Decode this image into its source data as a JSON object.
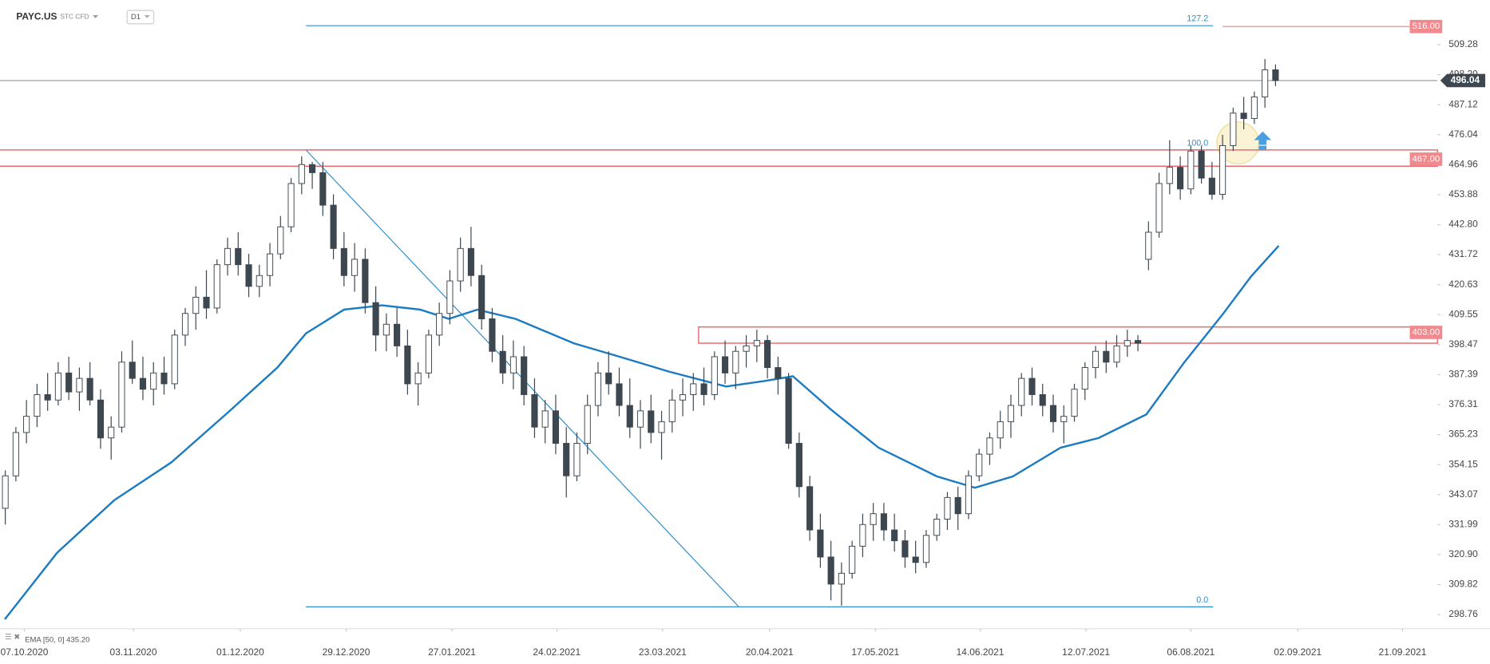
{
  "chart_data": {
    "type": "candlestick",
    "symbol": "PAYC.US",
    "subtitle": "STC CFD",
    "timeframe": "D1",
    "xlim": [
      -0.5,
      135.3
    ],
    "ylim": [
      293.5,
      525.8
    ],
    "xticks": [
      {
        "value": 1.8,
        "label": "07.10.2020"
      },
      {
        "value": 12.1,
        "label": "03.11.2020"
      },
      {
        "value": 22.2,
        "label": "01.12.2020"
      },
      {
        "value": 32.2,
        "label": "29.12.2020"
      },
      {
        "value": 42.2,
        "label": "27.01.2021"
      },
      {
        "value": 52.1,
        "label": "24.02.2021"
      },
      {
        "value": 62.1,
        "label": "23.03.2021"
      },
      {
        "value": 72.2,
        "label": "20.04.2021"
      },
      {
        "value": 82.2,
        "label": "17.05.2021"
      },
      {
        "value": 92.1,
        "label": "14.06.2021"
      },
      {
        "value": 102.1,
        "label": "12.07.2021"
      },
      {
        "value": 112,
        "label": "06.08.2021"
      },
      {
        "value": 122.1,
        "label": "02.09.2021"
      },
      {
        "value": 132,
        "label": "21.09.2021"
      }
    ],
    "yticks": [
      509.28,
      {
        "value": 498.2,
        "label": "498.20"
      },
      487.12,
      476.04,
      464.96,
      453.88,
      {
        "value": 442.8,
        "label": "442.80"
      },
      431.72,
      420.63,
      409.55,
      398.47,
      387.39,
      376.31,
      365.23,
      354.15,
      343.07,
      331.99,
      {
        "value": 320.9,
        "label": "320.90"
      },
      309.82,
      298.76
    ],
    "up_color": "#ffffff",
    "down_color": "#3d4750",
    "candles": [
      [
        338,
        352,
        332,
        350
      ],
      [
        350,
        368,
        348,
        366
      ],
      [
        366,
        378,
        362,
        372
      ],
      [
        372,
        384,
        368,
        380
      ],
      [
        380,
        388,
        374,
        378
      ],
      [
        378,
        392,
        376,
        388
      ],
      [
        388,
        394,
        378,
        381
      ],
      [
        381,
        390,
        374,
        386
      ],
      [
        386,
        392,
        376,
        378
      ],
      [
        378,
        382,
        360,
        364
      ],
      [
        364,
        372,
        356,
        368
      ],
      [
        368,
        396,
        366,
        392
      ],
      [
        392,
        400,
        384,
        386
      ],
      [
        386,
        394,
        378,
        382
      ],
      [
        382,
        392,
        376,
        388
      ],
      [
        388,
        394,
        380,
        384
      ],
      [
        384,
        404,
        382,
        402
      ],
      [
        402,
        412,
        398,
        410
      ],
      [
        410,
        420,
        404,
        416
      ],
      [
        416,
        426,
        408,
        412
      ],
      [
        412,
        430,
        410,
        428
      ],
      [
        428,
        438,
        424,
        434
      ],
      [
        434,
        440,
        424,
        428
      ],
      [
        428,
        432,
        416,
        420
      ],
      [
        420,
        428,
        416,
        424
      ],
      [
        424,
        436,
        420,
        432
      ],
      [
        432,
        446,
        430,
        442
      ],
      [
        442,
        460,
        440,
        458
      ],
      [
        458,
        468,
        454,
        465
      ],
      [
        465,
        466,
        456,
        462
      ],
      [
        462,
        466,
        446,
        450
      ],
      [
        450,
        454,
        430,
        434
      ],
      [
        434,
        440,
        420,
        424
      ],
      [
        424,
        436,
        418,
        430
      ],
      [
        430,
        434,
        410,
        414
      ],
      [
        414,
        420,
        396,
        402
      ],
      [
        402,
        410,
        396,
        406
      ],
      [
        406,
        412,
        394,
        398
      ],
      [
        398,
        404,
        380,
        384
      ],
      [
        384,
        392,
        376,
        388
      ],
      [
        388,
        404,
        386,
        402
      ],
      [
        402,
        414,
        398,
        410
      ],
      [
        410,
        426,
        406,
        422
      ],
      [
        422,
        438,
        418,
        434
      ],
      [
        434,
        442,
        420,
        424
      ],
      [
        424,
        428,
        404,
        408
      ],
      [
        408,
        412,
        392,
        396
      ],
      [
        396,
        402,
        384,
        388
      ],
      [
        388,
        400,
        382,
        394
      ],
      [
        394,
        398,
        376,
        380
      ],
      [
        380,
        386,
        364,
        368
      ],
      [
        368,
        378,
        362,
        374
      ],
      [
        374,
        380,
        358,
        362
      ],
      [
        362,
        368,
        342,
        350
      ],
      [
        350,
        366,
        348,
        362
      ],
      [
        362,
        380,
        358,
        376
      ],
      [
        376,
        392,
        372,
        388
      ],
      [
        388,
        396,
        380,
        384
      ],
      [
        384,
        390,
        372,
        376
      ],
      [
        376,
        386,
        364,
        368
      ],
      [
        368,
        378,
        360,
        374
      ],
      [
        374,
        380,
        362,
        366
      ],
      [
        366,
        374,
        356,
        370
      ],
      [
        370,
        382,
        366,
        378
      ],
      [
        378,
        386,
        372,
        380
      ],
      [
        380,
        388,
        374,
        384
      ],
      [
        384,
        390,
        376,
        380
      ],
      [
        380,
        396,
        378,
        394
      ],
      [
        394,
        400,
        384,
        388
      ],
      [
        388,
        398,
        382,
        396
      ],
      [
        396,
        402,
        390,
        398
      ],
      [
        398,
        404,
        392,
        400
      ],
      [
        400,
        402,
        386,
        390
      ],
      [
        390,
        394,
        380,
        386
      ],
      [
        386,
        388,
        360,
        362
      ],
      [
        362,
        366,
        342,
        346
      ],
      [
        346,
        350,
        326,
        330
      ],
      [
        330,
        336,
        316,
        320
      ],
      [
        320,
        326,
        304,
        310
      ],
      [
        310,
        318,
        302,
        314
      ],
      [
        314,
        326,
        312,
        324
      ],
      [
        324,
        336,
        320,
        332
      ],
      [
        332,
        340,
        326,
        336
      ],
      [
        336,
        340,
        326,
        330
      ],
      [
        330,
        336,
        322,
        326
      ],
      [
        326,
        330,
        316,
        320
      ],
      [
        320,
        326,
        314,
        318
      ],
      [
        318,
        330,
        316,
        328
      ],
      [
        328,
        336,
        326,
        334
      ],
      [
        334,
        344,
        330,
        342
      ],
      [
        342,
        346,
        330,
        336
      ],
      [
        336,
        352,
        334,
        350
      ],
      [
        350,
        360,
        348,
        358
      ],
      [
        358,
        366,
        354,
        364
      ],
      [
        364,
        374,
        360,
        370
      ],
      [
        370,
        380,
        364,
        376
      ],
      [
        376,
        388,
        372,
        386
      ],
      [
        386,
        390,
        376,
        380
      ],
      [
        380,
        384,
        372,
        376
      ],
      [
        376,
        380,
        366,
        370
      ],
      [
        370,
        376,
        362,
        372
      ],
      [
        372,
        384,
        370,
        382
      ],
      [
        382,
        392,
        378,
        390
      ],
      [
        390,
        398,
        386,
        396
      ],
      [
        396,
        400,
        388,
        392
      ],
      [
        392,
        402,
        390,
        398
      ],
      [
        398,
        404,
        394,
        400
      ],
      [
        400,
        402,
        396,
        399
      ],
      [
        430,
        444,
        426,
        440
      ],
      [
        440,
        462,
        438,
        458
      ],
      [
        458,
        474,
        454,
        464
      ],
      [
        464,
        468,
        452,
        456
      ],
      [
        456,
        472,
        454,
        470
      ],
      [
        470,
        472,
        458,
        460
      ],
      [
        460,
        466,
        452,
        454
      ],
      [
        454,
        476,
        452,
        472
      ],
      [
        472,
        486,
        470,
        484
      ],
      [
        484,
        490,
        478,
        482
      ],
      [
        482,
        492,
        480,
        490
      ],
      [
        490,
        504,
        486,
        500
      ],
      [
        500,
        502,
        494,
        496.04
      ]
    ],
    "ema": {
      "label": "EMA [50, 0] 435.20",
      "color": "#1a7ac2",
      "x": [
        -0.05,
        4.9,
        10.3,
        15.7,
        21.2,
        25.7,
        28.4,
        32,
        35.6,
        39.2,
        41.9,
        44.6,
        48.2,
        53.7,
        58.2,
        62.7,
        68.1,
        71.7,
        74.4,
        78,
        82.5,
        88,
        91.6,
        95.2,
        99.7,
        103.3,
        107.8,
        111.4,
        115,
        117.7,
        120.3
      ],
      "values": [
        297,
        321.6,
        341,
        355,
        374,
        390,
        402.6,
        411.4,
        413,
        411.4,
        408,
        411.4,
        408,
        399,
        393.8,
        388.5,
        383,
        385,
        386.8,
        374.5,
        360.4,
        349.8,
        345.6,
        349.8,
        360.4,
        364,
        372.7,
        392,
        409.6,
        423.7,
        435
      ]
    },
    "last_price": {
      "value": 496.04,
      "label": "496.04"
    },
    "levels": [
      {
        "value": 516,
        "label": "516.00",
        "x_start": 115
      },
      {
        "value": 467,
        "label": "467.00",
        "zone": [
          464.4,
          470.4
        ],
        "x_start": -1.5
      },
      {
        "value": 403,
        "label": "403.00",
        "zone": [
          399,
          405
        ],
        "x_start": 65.5
      }
    ],
    "fibonacci": {
      "color": "#2b8fce",
      "x_range": [
        28.4,
        114.1
      ],
      "price_0": 301.6,
      "price_100": 470.4,
      "levels": [
        {
          "value": 0,
          "label": "0.0"
        },
        {
          "value": 100,
          "label": "100.0"
        },
        {
          "value": 127.2,
          "label": "127.2"
        }
      ]
    },
    "trendline": {
      "x": [
        28.4,
        69.3
      ],
      "values": [
        470.4,
        301.6
      ]
    }
  }
}
